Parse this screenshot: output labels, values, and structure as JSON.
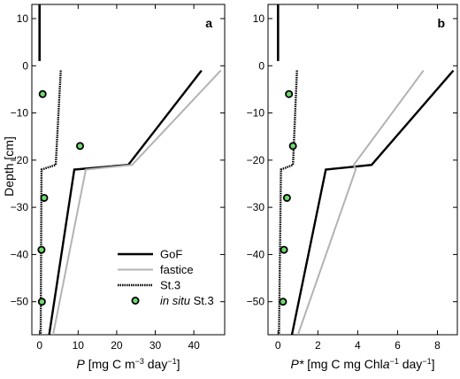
{
  "shared": {
    "ylabel": "Depth [cm]"
  },
  "chart_data": [
    {
      "type": "line",
      "panel_label": "a",
      "xlabel_parts": [
        {
          "t": "P",
          "italic": true
        },
        {
          "t": " [mg C  m"
        },
        {
          "t": "−3",
          "sup": true
        },
        {
          "t": " day"
        },
        {
          "t": "−1",
          "sup": true
        },
        {
          "t": "]"
        }
      ],
      "xlim": [
        -2,
        48
      ],
      "ylim": [
        -57,
        13
      ],
      "xticks": [
        0,
        10,
        20,
        30,
        40
      ],
      "yticks": [
        10,
        0,
        -10,
        -20,
        -30,
        -40,
        -50
      ],
      "legend": {
        "placement": "bottom-right",
        "entries": [
          {
            "label": "GoF",
            "style": "GoF"
          },
          {
            "label": "fastice",
            "style": "fastice"
          },
          {
            "label": "St.3",
            "style": "St3"
          },
          {
            "label_italic": "in situ",
            "label": " St.3",
            "style": "insitu"
          }
        ]
      },
      "series": [
        {
          "name": "GoF",
          "style": "GoF",
          "points": [
            [
              42,
              -1
            ],
            [
              23,
              -21
            ],
            [
              9,
              -22
            ],
            [
              2.5,
              -57
            ]
          ]
        },
        {
          "name": "fastice",
          "style": "fastice",
          "points": [
            [
              47,
              -1
            ],
            [
              24,
              -21
            ],
            [
              12,
              -22
            ],
            [
              3.5,
              -57
            ]
          ]
        },
        {
          "name": "St.3",
          "style": "St3",
          "points": [
            [
              5.5,
              -1
            ],
            [
              4.2,
              -21
            ],
            [
              0.5,
              -22
            ],
            [
              0.3,
              -57
            ]
          ]
        },
        {
          "name": "in situ St.3",
          "style": "insitu",
          "points": [
            [
              0.8,
              -6
            ],
            [
              10.5,
              -17
            ],
            [
              1.2,
              -28
            ],
            [
              0.5,
              -39
            ],
            [
              0.6,
              -50
            ]
          ]
        },
        {
          "name": "",
          "style": "surface",
          "points": [
            [
              0,
              13
            ],
            [
              0,
              1
            ]
          ]
        }
      ]
    },
    {
      "type": "line",
      "panel_label": "b",
      "xlabel_parts": [
        {
          "t": "P*",
          "italic": true
        },
        {
          "t": " [mg C  mg Chl"
        },
        {
          "t": "a",
          "italic": true
        },
        {
          "t": "−1",
          "sup": true
        },
        {
          "t": " day"
        },
        {
          "t": "−1",
          "sup": true
        },
        {
          "t": "]"
        }
      ],
      "xlim": [
        -0.5,
        9
      ],
      "ylim": [
        -57,
        13
      ],
      "xticks": [
        0,
        2,
        4,
        6,
        8
      ],
      "yticks": [
        10,
        0,
        -10,
        -20,
        -30,
        -40,
        -50
      ],
      "series": [
        {
          "name": "GoF",
          "style": "GoF",
          "points": [
            [
              8.8,
              -1
            ],
            [
              4.7,
              -21
            ],
            [
              2.4,
              -22
            ],
            [
              0.7,
              -57
            ]
          ]
        },
        {
          "name": "fastice",
          "style": "fastice",
          "points": [
            [
              7.3,
              -1
            ],
            [
              3.8,
              -21
            ],
            [
              3.9,
              -22
            ],
            [
              1.0,
              -57
            ]
          ]
        },
        {
          "name": "St.3",
          "style": "St3",
          "points": [
            [
              0.95,
              -1
            ],
            [
              0.75,
              -21
            ],
            [
              0.15,
              -22
            ],
            [
              0.05,
              -57
            ]
          ]
        },
        {
          "name": "in situ St.3",
          "style": "insitu",
          "points": [
            [
              0.55,
              -6
            ],
            [
              0.75,
              -17
            ],
            [
              0.45,
              -28
            ],
            [
              0.3,
              -39
            ],
            [
              0.25,
              -50
            ]
          ]
        },
        {
          "name": "",
          "style": "surface",
          "points": [
            [
              0,
              13
            ],
            [
              0,
              1
            ]
          ]
        }
      ]
    }
  ],
  "styles": {
    "GoF": {
      "stroke": "#000000",
      "width": 2.4,
      "dash": ""
    },
    "fastice": {
      "stroke": "#b3b3b3",
      "width": 2.0,
      "dash": ""
    },
    "St3": {
      "stroke": "#000000",
      "width": 2.4,
      "dash": "1.5,1"
    },
    "surface": {
      "stroke": "#000000",
      "width": 2.6,
      "dash": ""
    },
    "insitu": {
      "fill": "#6fd96f",
      "stroke": "#000000"
    }
  }
}
